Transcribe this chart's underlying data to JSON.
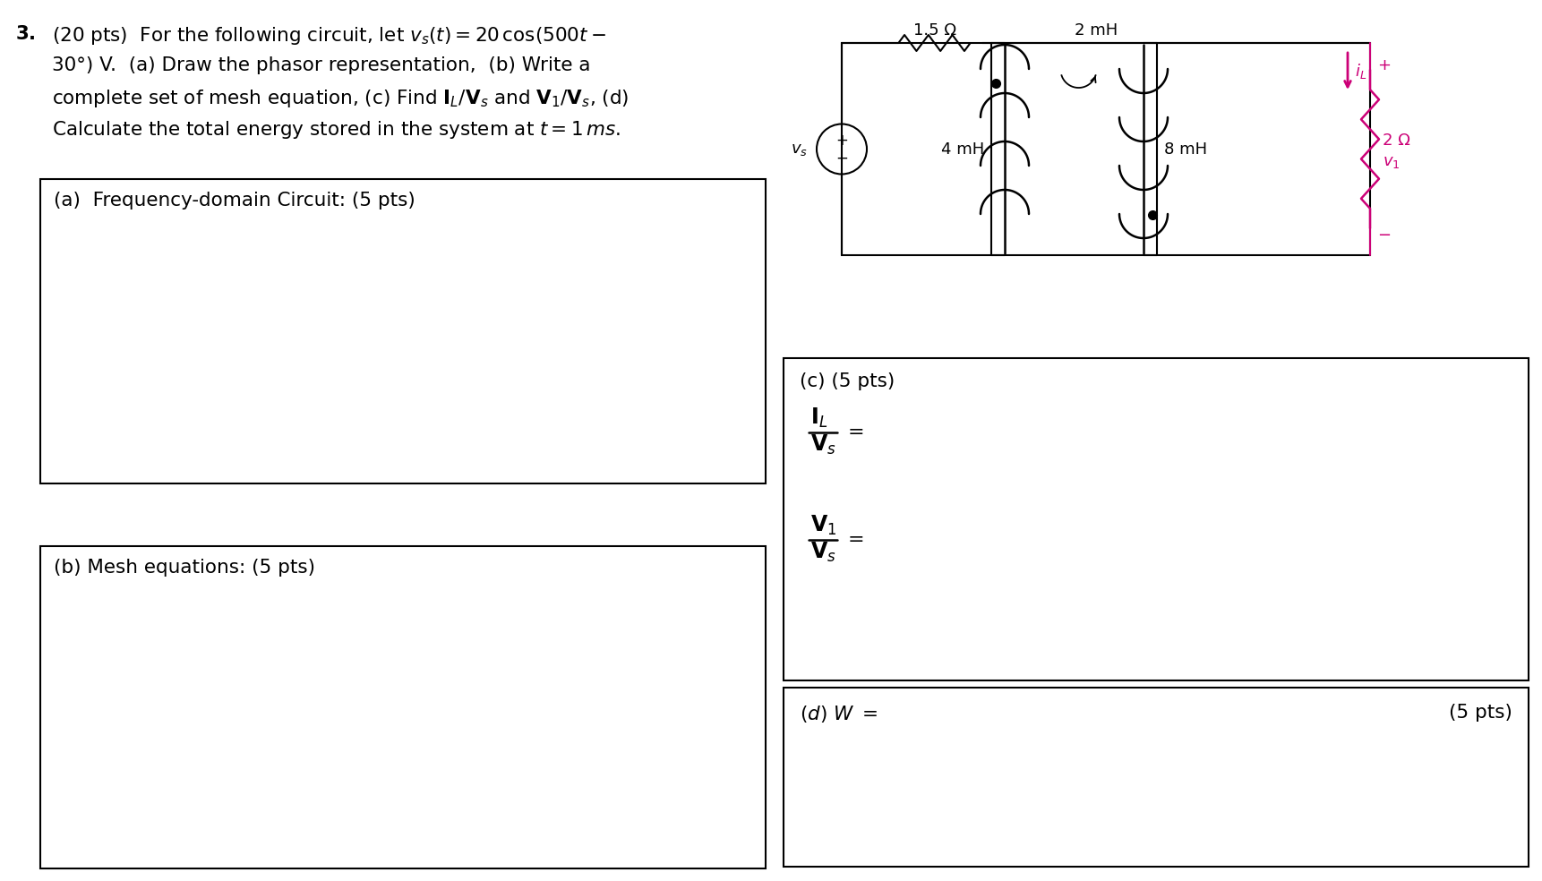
{
  "bg_color": "#ffffff",
  "text_color": "#000000",
  "magenta_color": "#cc0077",
  "R1_label": "1.5 Ω",
  "L1_label": "2 mH",
  "L2_label": "4 mH",
  "L3_label": "8 mH",
  "R2_label": "2 Ω",
  "box_a_label": "(a)  Frequency-domain Circuit: (5 pts)",
  "box_b_label": "(b) Mesh equations: (5 pts)",
  "box_c_label": "(c) (5 pts)",
  "five_pts": "(5 pts)",
  "fs_main": 15.5,
  "fs_circuit": 13
}
